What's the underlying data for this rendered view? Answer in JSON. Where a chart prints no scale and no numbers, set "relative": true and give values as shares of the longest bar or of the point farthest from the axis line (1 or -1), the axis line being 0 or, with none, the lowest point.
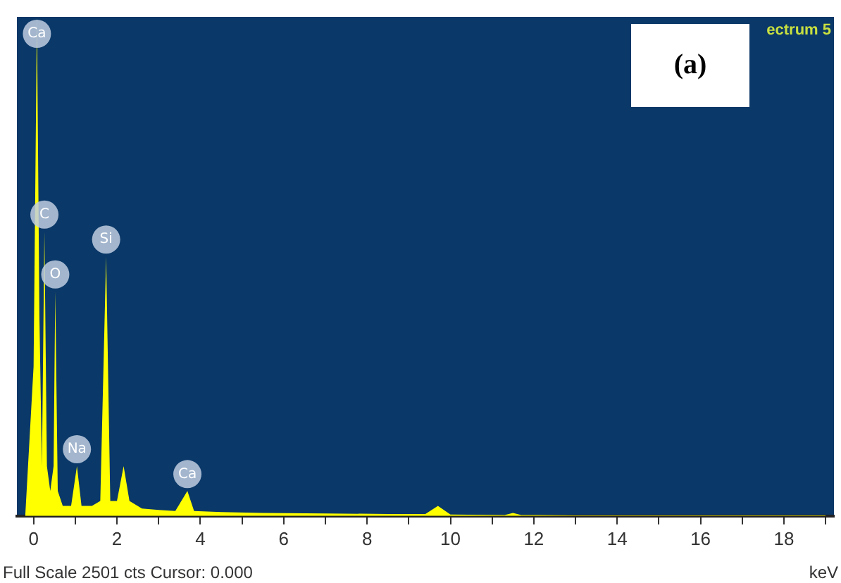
{
  "chart_data": {
    "type": "area",
    "relative": true,
    "marker": "none",
    "xlabel": "keV",
    "x": [
      -0.2,
      0.0,
      0.08,
      0.14,
      0.2,
      0.26,
      0.32,
      0.4,
      0.48,
      0.52,
      0.58,
      0.7,
      0.9,
      1.04,
      1.15,
      1.4,
      1.6,
      1.74,
      1.84,
      2.0,
      2.16,
      2.3,
      2.6,
      3.0,
      3.4,
      3.69,
      3.85,
      4.5,
      5.5,
      7,
      8.5,
      9.4,
      9.7,
      10,
      11.3,
      11.5,
      11.7,
      13,
      15,
      19
    ],
    "series": [
      {
        "color": "#ffff00",
        "values": [
          0,
          0.3,
          1,
          0.4,
          0.1,
          0.57,
          0.1,
          0.05,
          0.1,
          0.45,
          0.05,
          0.02,
          0.02,
          0.1,
          0.02,
          0.02,
          0.03,
          0.52,
          0.03,
          0.03,
          0.1,
          0.03,
          0.015,
          0.012,
          0.01,
          0.05,
          0.01,
          0.008,
          0.006,
          0.005,
          0.004,
          0.004,
          0.02,
          0.003,
          0.002,
          0.006,
          0.002,
          0.001,
          0.001,
          0.001
        ]
      }
    ],
    "xlim": [
      -0.4,
      19.2
    ],
    "xticks": [
      0,
      {
        "value": 1,
        "label": null
      },
      2,
      {
        "value": 3,
        "label": null
      },
      4,
      {
        "value": 5,
        "label": null
      },
      6,
      {
        "value": 7,
        "label": null
      },
      8,
      {
        "value": 9,
        "label": null
      },
      10,
      {
        "value": 11,
        "label": null
      },
      12,
      {
        "value": 13,
        "label": null
      },
      14,
      {
        "value": 15,
        "label": null
      },
      16,
      {
        "value": 17,
        "label": null
      },
      18,
      {
        "value": 19,
        "label": null
      }
    ],
    "annotations": [
      {
        "text": "Ca",
        "x": 0.08,
        "y": 1
      },
      {
        "text": "C",
        "x": 0.26,
        "y": 0.57
      },
      {
        "text": "O",
        "x": 0.52,
        "y": 0.45
      },
      {
        "text": "Si",
        "x": 1.74,
        "y": 0.52
      },
      {
        "text": "Na",
        "x": 1.04,
        "y": 0.1
      },
      {
        "text": "Ca",
        "x": 3.69,
        "y": 0.05
      },
      "ectrum 5",
      "(a)",
      "Full Scale 2501 cts Cursor: 0.000"
    ]
  }
}
